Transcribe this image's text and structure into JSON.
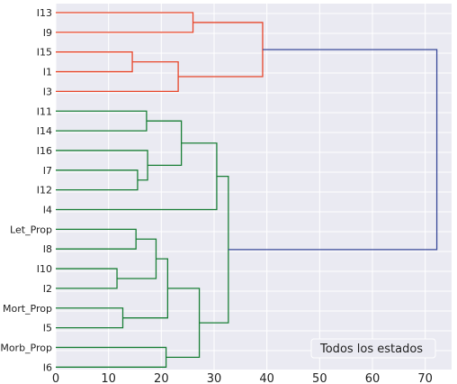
{
  "chart_data": {
    "type": "dendrogram",
    "orientation": "horizontal",
    "leaves": [
      "I13",
      "I9",
      "I15",
      "I1",
      "I3",
      "I11",
      "I14",
      "I16",
      "I7",
      "I12",
      "I4",
      "Let_Prop",
      "I8",
      "I10",
      "I2",
      "Mort_Prop",
      "I5",
      "Morb_Prop",
      "I6"
    ],
    "merges": [
      {
        "id": "m1",
        "a": "I13",
        "b": "I9",
        "height": 26,
        "cluster": "red"
      },
      {
        "id": "m2",
        "a": "I15",
        "b": "I1",
        "height": 14.5,
        "cluster": "red"
      },
      {
        "id": "m3",
        "a": "m2",
        "b": "I3",
        "height": 23.2,
        "cluster": "red"
      },
      {
        "id": "m4",
        "a": "m1",
        "b": "m3",
        "height": 39.2,
        "cluster": "red"
      },
      {
        "id": "m5",
        "a": "I11",
        "b": "I14",
        "height": 17.2,
        "cluster": "green"
      },
      {
        "id": "m6",
        "a": "I7",
        "b": "I12",
        "height": 15.5,
        "cluster": "green"
      },
      {
        "id": "m7",
        "a": "I16",
        "b": "m6",
        "height": 17.4,
        "cluster": "green"
      },
      {
        "id": "m8",
        "a": "m5",
        "b": "m7",
        "height": 23.8,
        "cluster": "green"
      },
      {
        "id": "m9",
        "a": "m8",
        "b": "I4",
        "height": 30.5,
        "cluster": "green"
      },
      {
        "id": "m10",
        "a": "Let_Prop",
        "b": "I8",
        "height": 15.2,
        "cluster": "green"
      },
      {
        "id": "m11",
        "a": "I10",
        "b": "I2",
        "height": 11.6,
        "cluster": "green"
      },
      {
        "id": "m12",
        "a": "m10",
        "b": "m11",
        "height": 19,
        "cluster": "green"
      },
      {
        "id": "m13",
        "a": "Mort_Prop",
        "b": "I5",
        "height": 12.7,
        "cluster": "green"
      },
      {
        "id": "m14",
        "a": "m12",
        "b": "m13",
        "height": 21.2,
        "cluster": "green"
      },
      {
        "id": "m15",
        "a": "Morb_Prop",
        "b": "I6",
        "height": 20.9,
        "cluster": "green"
      },
      {
        "id": "m16",
        "a": "m14",
        "b": "m15",
        "height": 27.2,
        "cluster": "green"
      },
      {
        "id": "m17",
        "a": "m9",
        "b": "m16",
        "height": 32.7,
        "cluster": "green"
      },
      {
        "id": "m18",
        "a": "m4",
        "b": "m17",
        "height": 72.2,
        "cluster": "root"
      }
    ],
    "xlim": [
      0,
      75
    ],
    "xticks": [
      0,
      10,
      20,
      30,
      40,
      50,
      60,
      70
    ],
    "grid": true,
    "title": "",
    "xlabel": "",
    "ylabel": "",
    "annotation": "Todos los estados",
    "annotation_position": "bottom-right",
    "colors": {
      "red": "#e8462a",
      "green": "#1a7f37",
      "root": "#3a4a9a",
      "background": "#eaeaf2",
      "grid": "#ffffff"
    }
  }
}
